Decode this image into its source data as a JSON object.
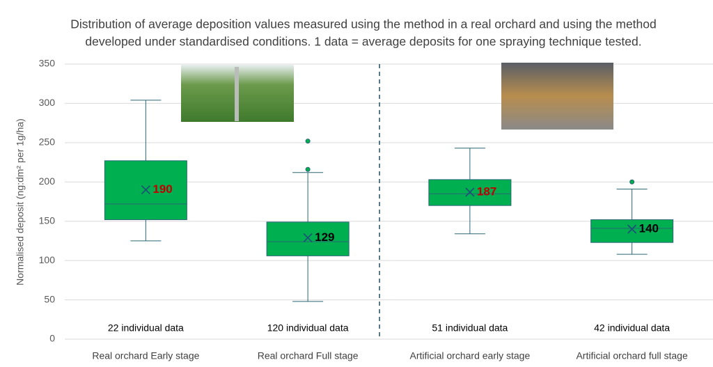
{
  "chart_data": {
    "type": "box",
    "title": [
      "Distribution of average deposition values measured using the method in a real orchard and using the method",
      "developed under standardised conditions. 1 data = average deposits for one spraying technique tested."
    ],
    "y_label": "Normalised deposit (ng:dm² per 1g/ha)",
    "categories": [
      "Real orchard Early stage",
      "Real orchard Full stage",
      "Artificial orchard early stage",
      "Artificial orchard full stage"
    ],
    "count_labels": [
      "22 individual data",
      "120 individual data",
      "51 individual data",
      "42 individual data"
    ],
    "boxes": [
      {
        "min": 125,
        "q1": 152,
        "median": 172,
        "q3": 227,
        "max": 304,
        "mean": 190,
        "outliers": [],
        "mean_color": "#c00000"
      },
      {
        "min": 48,
        "q1": 106,
        "median": 124,
        "q3": 149,
        "max": 212,
        "mean": 129,
        "outliers": [
          216,
          252
        ],
        "mean_color": "#000000"
      },
      {
        "min": 134,
        "q1": 170,
        "median": 185,
        "q3": 203,
        "max": 243,
        "mean": 187,
        "outliers": [],
        "mean_color": "#c00000"
      },
      {
        "min": 108,
        "q1": 123,
        "median": 141,
        "q3": 152,
        "max": 191,
        "mean": 140,
        "outliers": [
          200
        ],
        "mean_color": "#000000"
      }
    ],
    "color": "#00b050",
    "line_color": "#2a6675",
    "ylim": [
      0,
      350
    ],
    "yticks": [
      0,
      50,
      100,
      150,
      200,
      250,
      300,
      350
    ],
    "grid": true
  }
}
